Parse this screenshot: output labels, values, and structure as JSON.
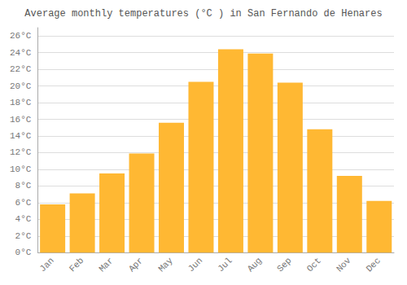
{
  "chart_data": {
    "type": "bar",
    "title": "Average monthly temperatures (°C ) in San Fernando de Henares",
    "categories": [
      "Jan",
      "Feb",
      "Mar",
      "Apr",
      "May",
      "Jun",
      "Jul",
      "Aug",
      "Sep",
      "Oct",
      "Nov",
      "Dec"
    ],
    "values": [
      5.8,
      7.1,
      9.5,
      11.9,
      15.6,
      20.5,
      24.4,
      23.9,
      20.4,
      14.8,
      9.2,
      6.2
    ],
    "color": "#FFB833",
    "ylim": [
      0,
      27
    ],
    "yticks": [
      {
        "value": 0,
        "label": "0°C"
      },
      {
        "value": 2,
        "label": "2°C"
      },
      {
        "value": 4,
        "label": "4°C"
      },
      {
        "value": 6,
        "label": "6°C"
      },
      {
        "value": 8,
        "label": "8°C"
      },
      {
        "value": 10,
        "label": "10°C"
      },
      {
        "value": 12,
        "label": "12°C"
      },
      {
        "value": 14,
        "label": "14°C"
      },
      {
        "value": 16,
        "label": "16°C"
      },
      {
        "value": 18,
        "label": "18°C"
      },
      {
        "value": 20,
        "label": "20°C"
      },
      {
        "value": 22,
        "label": "22°C"
      },
      {
        "value": 24,
        "label": "24°C"
      },
      {
        "value": 26,
        "label": "26°C"
      }
    ],
    "grid": true
  }
}
